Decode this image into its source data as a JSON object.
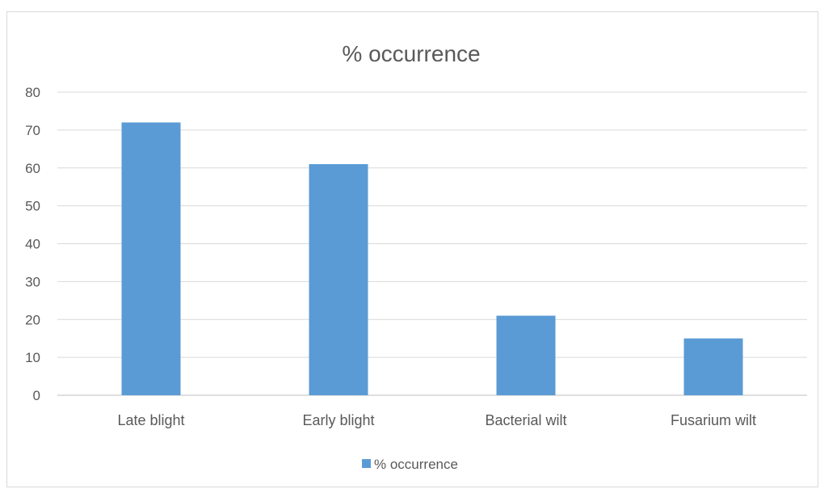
{
  "chart_data": {
    "type": "bar",
    "title": "% occurrence",
    "categories": [
      "Late blight",
      "Early blight",
      "Bacterial wilt",
      "Fusarium wilt"
    ],
    "series": [
      {
        "name": "% occurrence",
        "values": [
          72,
          61,
          21,
          15
        ],
        "color": "#5b9bd5"
      }
    ],
    "ylim": [
      0,
      80
    ],
    "yticks": [
      0,
      10,
      20,
      30,
      40,
      50,
      60,
      70,
      80
    ],
    "grid": true,
    "legend": "bottom"
  }
}
